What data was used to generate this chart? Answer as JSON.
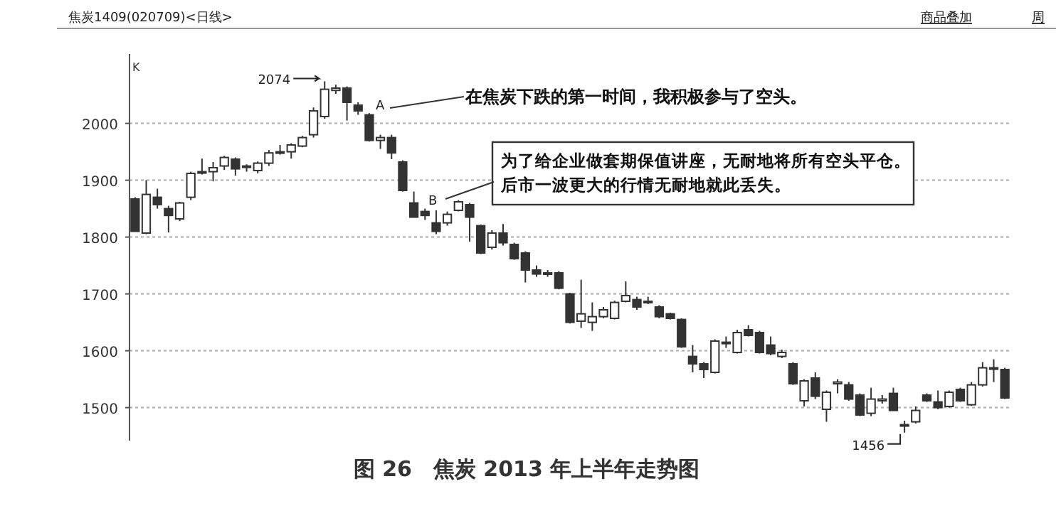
{
  "chart_data": {
    "type": "candlestick",
    "title": "图 26　焦炭 2013 年上半年走势图",
    "subtitle": "焦炭1409(020709)<日线>",
    "annotations": [
      "商品叠加",
      "周",
      "K",
      {
        "text": "2074"
      },
      {
        "text": "1456"
      },
      "A",
      "B",
      "在焦炭下跌的第一时间，我积极参与了空头。",
      "为了给企业做套期保值讲座，无耐地将所有空头平仓。",
      "后市一波更大的行情无耐地就此丢失。"
    ],
    "categories": [
      null,
      null,
      null,
      null,
      null,
      null,
      null,
      null,
      null,
      null,
      null,
      null,
      null,
      null,
      null,
      null,
      null,
      null,
      null,
      null,
      null,
      null,
      null,
      null,
      null,
      null,
      null,
      null,
      null,
      null,
      null,
      null,
      null,
      null,
      null,
      null,
      null,
      null,
      null,
      null,
      null,
      null,
      null,
      null,
      null,
      null,
      null,
      null,
      null,
      null,
      null,
      null,
      null,
      null,
      null,
      null,
      null,
      null,
      null,
      null,
      null,
      null,
      null,
      null,
      null,
      null,
      null,
      null,
      null,
      null,
      null,
      null,
      null,
      null,
      null,
      null,
      null,
      null,
      null
    ],
    "ohlc": [
      [
        1867,
        1870,
        1810,
        1810
      ],
      [
        1807,
        1900,
        1805,
        1875
      ],
      [
        1870,
        1885,
        1850,
        1857
      ],
      [
        1850,
        1855,
        1808,
        1838
      ],
      [
        1832,
        1862,
        1828,
        1860
      ],
      [
        1870,
        1915,
        1865,
        1912
      ],
      [
        1913,
        1938,
        1910,
        1915
      ],
      [
        1915,
        1932,
        1898,
        1922
      ],
      [
        1925,
        1943,
        1918,
        1940
      ],
      [
        1937,
        1940,
        1908,
        1920
      ],
      [
        1923,
        1928,
        1915,
        1925
      ],
      [
        1917,
        1933,
        1912,
        1930
      ],
      [
        1930,
        1953,
        1925,
        1948
      ],
      [
        1948,
        1962,
        1945,
        1950
      ],
      [
        1950,
        1965,
        1938,
        1962
      ],
      [
        1960,
        1978,
        1958,
        1975
      ],
      [
        1980,
        2028,
        1975,
        2022
      ],
      [
        2012,
        2074,
        2008,
        2060
      ],
      [
        2058,
        2068,
        2052,
        2062
      ],
      [
        2062,
        2065,
        2005,
        2037
      ],
      [
        2032,
        2037,
        2015,
        2022
      ],
      [
        2015,
        2018,
        1968,
        1970
      ],
      [
        1970,
        1980,
        1955,
        1975
      ],
      [
        1975,
        1980,
        1937,
        1948
      ],
      [
        1932,
        1935,
        1880,
        1882
      ],
      [
        1860,
        1880,
        1835,
        1835
      ],
      [
        1845,
        1850,
        1830,
        1838
      ],
      [
        1825,
        1847,
        1805,
        1810
      ],
      [
        1825,
        1845,
        1820,
        1840
      ],
      [
        1847,
        1865,
        1845,
        1862
      ],
      [
        1857,
        1860,
        1792,
        1835
      ],
      [
        1820,
        1822,
        1770,
        1772
      ],
      [
        1782,
        1812,
        1778,
        1807
      ],
      [
        1807,
        1823,
        1785,
        1790
      ],
      [
        1787,
        1790,
        1760,
        1762
      ],
      [
        1772,
        1775,
        1720,
        1742
      ],
      [
        1742,
        1750,
        1730,
        1735
      ],
      [
        1737,
        1742,
        1730,
        1735
      ],
      [
        1737,
        1740,
        1708,
        1710
      ],
      [
        1700,
        1702,
        1648,
        1650
      ],
      [
        1652,
        1725,
        1640,
        1665
      ],
      [
        1650,
        1685,
        1635,
        1660
      ],
      [
        1660,
        1677,
        1657,
        1672
      ],
      [
        1657,
        1688,
        1655,
        1685
      ],
      [
        1687,
        1722,
        1685,
        1697
      ],
      [
        1690,
        1695,
        1672,
        1677
      ],
      [
        1687,
        1695,
        1682,
        1685
      ],
      [
        1677,
        1680,
        1657,
        1660
      ],
      [
        1665,
        1667,
        1655,
        1657
      ],
      [
        1655,
        1657,
        1605,
        1607
      ],
      [
        1590,
        1610,
        1562,
        1577
      ],
      [
        1577,
        1580,
        1552,
        1567
      ],
      [
        1562,
        1620,
        1560,
        1617
      ],
      [
        1613,
        1625,
        1605,
        1615
      ],
      [
        1597,
        1637,
        1595,
        1632
      ],
      [
        1637,
        1645,
        1625,
        1627
      ],
      [
        1632,
        1635,
        1595,
        1597
      ],
      [
        1610,
        1625,
        1592,
        1595
      ],
      [
        1590,
        1602,
        1587,
        1597
      ],
      [
        1577,
        1580,
        1540,
        1542
      ],
      [
        1512,
        1550,
        1502,
        1547
      ],
      [
        1552,
        1562,
        1515,
        1520
      ],
      [
        1497,
        1530,
        1475,
        1527
      ],
      [
        1542,
        1550,
        1525,
        1545
      ],
      [
        1540,
        1545,
        1512,
        1515
      ],
      [
        1522,
        1525,
        1485,
        1487
      ],
      [
        1490,
        1535,
        1485,
        1515
      ],
      [
        1512,
        1522,
        1507,
        1515
      ],
      [
        1525,
        1535,
        1495,
        1495
      ],
      [
        1468,
        1477,
        1456,
        1470
      ],
      [
        1475,
        1502,
        1472,
        1495
      ],
      [
        1522,
        1525,
        1510,
        1512
      ],
      [
        1510,
        1530,
        1497,
        1500
      ],
      [
        1502,
        1530,
        1500,
        1527
      ],
      [
        1532,
        1535,
        1510,
        1512
      ],
      [
        1505,
        1545,
        1503,
        1540
      ],
      [
        1540,
        1580,
        1537,
        1570
      ],
      [
        1568,
        1585,
        1545,
        1570
      ],
      [
        1567,
        1570,
        1515,
        1517
      ]
    ],
    "ylim": [
      1442,
      2117
    ],
    "yticks": [
      1500,
      1600,
      1700,
      1800,
      1900,
      2000
    ],
    "grid": "y",
    "tick_labels": "y"
  }
}
